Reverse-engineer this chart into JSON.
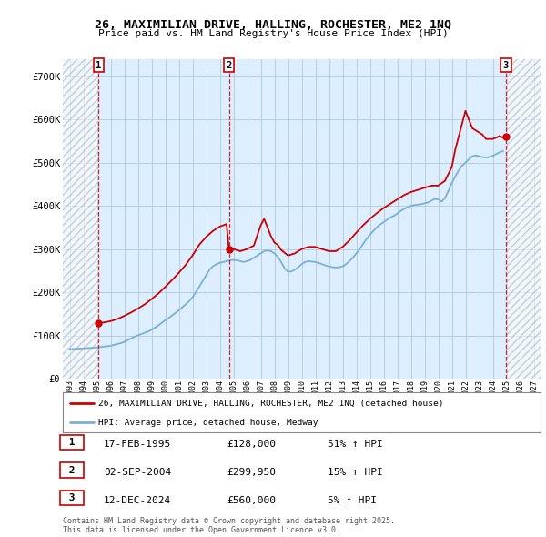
{
  "title": "26, MAXIMILIAN DRIVE, HALLING, ROCHESTER, ME2 1NQ",
  "subtitle": "Price paid vs. HM Land Registry's House Price Index (HPI)",
  "ylabel_ticks": [
    "£0",
    "£100K",
    "£200K",
    "£300K",
    "£400K",
    "£500K",
    "£600K",
    "£700K"
  ],
  "ytick_values": [
    0,
    100000,
    200000,
    300000,
    400000,
    500000,
    600000,
    700000
  ],
  "ylim": [
    0,
    740000
  ],
  "xlim_start": 1992.5,
  "xlim_end": 2027.5,
  "transactions": [
    {
      "num": 1,
      "date": "17-FEB-1995",
      "price": 128000,
      "pct": "51%",
      "direction": "↑",
      "year": 1995.125
    },
    {
      "num": 2,
      "date": "02-SEP-2004",
      "price": 299950,
      "pct": "15%",
      "direction": "↑",
      "year": 2004.667
    },
    {
      "num": 3,
      "date": "12-DEC-2024",
      "price": 560000,
      "pct": "5%",
      "direction": "↑",
      "year": 2024.958
    }
  ],
  "legend_label_red": "26, MAXIMILIAN DRIVE, HALLING, ROCHESTER, ME2 1NQ (detached house)",
  "legend_label_blue": "HPI: Average price, detached house, Medway",
  "footer1": "Contains HM Land Registry data © Crown copyright and database right 2025.",
  "footer2": "This data is licensed under the Open Government Licence v3.0.",
  "bg_color": "#ffffff",
  "plot_bg_color": "#ddeeff",
  "grid_color": "#b0c8e0",
  "red_line_color": "#cc0000",
  "blue_line_color": "#7ab0d4",
  "hpi_data_x": [
    1993,
    1993.25,
    1993.5,
    1993.75,
    1994,
    1994.25,
    1994.5,
    1994.75,
    1995,
    1995.25,
    1995.5,
    1995.75,
    1996,
    1996.25,
    1996.5,
    1996.75,
    1997,
    1997.25,
    1997.5,
    1997.75,
    1998,
    1998.25,
    1998.5,
    1998.75,
    1999,
    1999.25,
    1999.5,
    1999.75,
    2000,
    2000.25,
    2000.5,
    2000.75,
    2001,
    2001.25,
    2001.5,
    2001.75,
    2002,
    2002.25,
    2002.5,
    2002.75,
    2003,
    2003.25,
    2003.5,
    2003.75,
    2004,
    2004.25,
    2004.5,
    2004.75,
    2005,
    2005.25,
    2005.5,
    2005.75,
    2006,
    2006.25,
    2006.5,
    2006.75,
    2007,
    2007.25,
    2007.5,
    2007.75,
    2008,
    2008.25,
    2008.5,
    2008.75,
    2009,
    2009.25,
    2009.5,
    2009.75,
    2010,
    2010.25,
    2010.5,
    2010.75,
    2011,
    2011.25,
    2011.5,
    2011.75,
    2012,
    2012.25,
    2012.5,
    2012.75,
    2013,
    2013.25,
    2013.5,
    2013.75,
    2014,
    2014.25,
    2014.5,
    2014.75,
    2015,
    2015.25,
    2015.5,
    2015.75,
    2016,
    2016.25,
    2016.5,
    2016.75,
    2017,
    2017.25,
    2017.5,
    2017.75,
    2018,
    2018.25,
    2018.5,
    2018.75,
    2019,
    2019.25,
    2019.5,
    2019.75,
    2020,
    2020.25,
    2020.5,
    2020.75,
    2021,
    2021.25,
    2021.5,
    2021.75,
    2022,
    2022.25,
    2022.5,
    2022.75,
    2023,
    2023.25,
    2023.5,
    2023.75,
    2024,
    2024.25,
    2024.5,
    2024.75
  ],
  "hpi_data_y": [
    68000,
    68500,
    69000,
    69500,
    70000,
    70500,
    71000,
    71500,
    72000,
    73000,
    74000,
    75000,
    76000,
    78000,
    80000,
    82000,
    85000,
    89000,
    93000,
    97000,
    100000,
    103000,
    106000,
    109000,
    113000,
    118000,
    123000,
    129000,
    135000,
    140000,
    146000,
    152000,
    158000,
    165000,
    172000,
    179000,
    188000,
    200000,
    213000,
    226000,
    239000,
    252000,
    260000,
    265000,
    268000,
    270000,
    272000,
    274000,
    275000,
    274000,
    272000,
    270000,
    272000,
    275000,
    280000,
    285000,
    290000,
    295000,
    297000,
    295000,
    290000,
    282000,
    270000,
    255000,
    248000,
    248000,
    252000,
    258000,
    265000,
    270000,
    272000,
    271000,
    270000,
    268000,
    265000,
    262000,
    260000,
    258000,
    257000,
    258000,
    260000,
    265000,
    272000,
    280000,
    290000,
    300000,
    312000,
    323000,
    333000,
    342000,
    350000,
    357000,
    362000,
    368000,
    373000,
    377000,
    382000,
    388000,
    393000,
    397000,
    400000,
    402000,
    403000,
    404000,
    406000,
    408000,
    412000,
    416000,
    415000,
    410000,
    418000,
    435000,
    453000,
    468000,
    482000,
    493000,
    500000,
    508000,
    515000,
    517000,
    515000,
    513000,
    512000,
    513000,
    516000,
    520000,
    524000,
    527000
  ],
  "red_data_x": [
    1995.125,
    1995.5,
    1996,
    1996.5,
    1997,
    1997.5,
    1998,
    1998.5,
    1999,
    1999.5,
    2000,
    2000.5,
    2001,
    2001.5,
    2002,
    2002.5,
    2003,
    2003.5,
    2004,
    2004.5,
    2004.667,
    2005,
    2005.5,
    2006,
    2006.5,
    2007,
    2007.25,
    2007.5,
    2007.75,
    2008,
    2008.25,
    2008.5,
    2009,
    2009.5,
    2010,
    2010.5,
    2011,
    2011.5,
    2012,
    2012.5,
    2013,
    2013.5,
    2014,
    2014.5,
    2015,
    2015.5,
    2016,
    2016.5,
    2017,
    2017.5,
    2018,
    2018.5,
    2019,
    2019.5,
    2020,
    2020.5,
    2021,
    2021.25,
    2021.5,
    2021.75,
    2022,
    2022.25,
    2022.5,
    2023,
    2023.25,
    2023.5,
    2024,
    2024.25,
    2024.5,
    2024.75,
    2024.958
  ],
  "red_data_y": [
    128000,
    130000,
    133000,
    138000,
    145000,
    153000,
    162000,
    172000,
    184000,
    197000,
    212000,
    228000,
    245000,
    263000,
    285000,
    310000,
    328000,
    342000,
    352000,
    358000,
    299950,
    300000,
    295000,
    300000,
    308000,
    355000,
    370000,
    350000,
    330000,
    315000,
    310000,
    298000,
    285000,
    290000,
    300000,
    305000,
    305000,
    300000,
    295000,
    295000,
    305000,
    320000,
    338000,
    355000,
    370000,
    383000,
    395000,
    405000,
    415000,
    425000,
    432000,
    437000,
    442000,
    447000,
    447000,
    458000,
    490000,
    530000,
    560000,
    590000,
    620000,
    600000,
    580000,
    570000,
    565000,
    555000,
    555000,
    558000,
    562000,
    558000,
    560000
  ]
}
